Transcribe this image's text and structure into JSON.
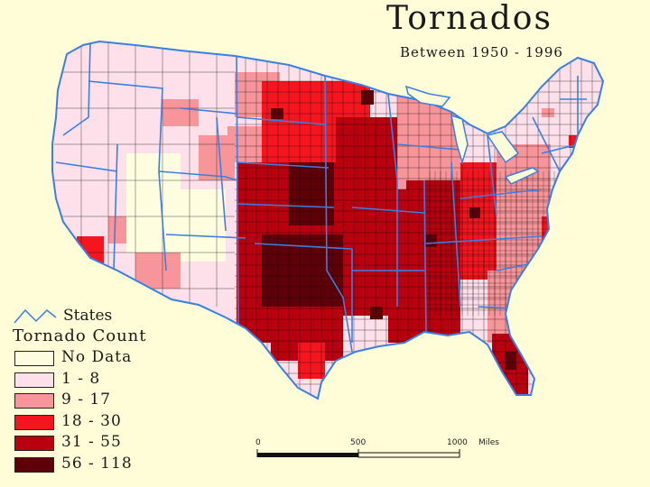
{
  "title": "Tornados",
  "subtitle": "Between 1950 - 1996",
  "legend": {
    "states_label": "States",
    "title": "Tornado Count",
    "items": [
      {
        "label": "No Data",
        "color": "#FEFDE0"
      },
      {
        "label": "1 - 8",
        "color": "#FDE0EA"
      },
      {
        "label": "9 - 17",
        "color": "#F7959A"
      },
      {
        "label": "18 - 30",
        "color": "#F5151F"
      },
      {
        "label": "31 - 55",
        "color": "#B8000E"
      },
      {
        "label": "56 - 118",
        "color": "#5E0008"
      }
    ]
  },
  "scale": {
    "ticks": [
      "0",
      "500",
      "1000"
    ],
    "unit": "Miles"
  },
  "colors": {
    "background": "#FEFDD8",
    "state_border": "#3C7FE0",
    "county_border": "#111111"
  }
}
